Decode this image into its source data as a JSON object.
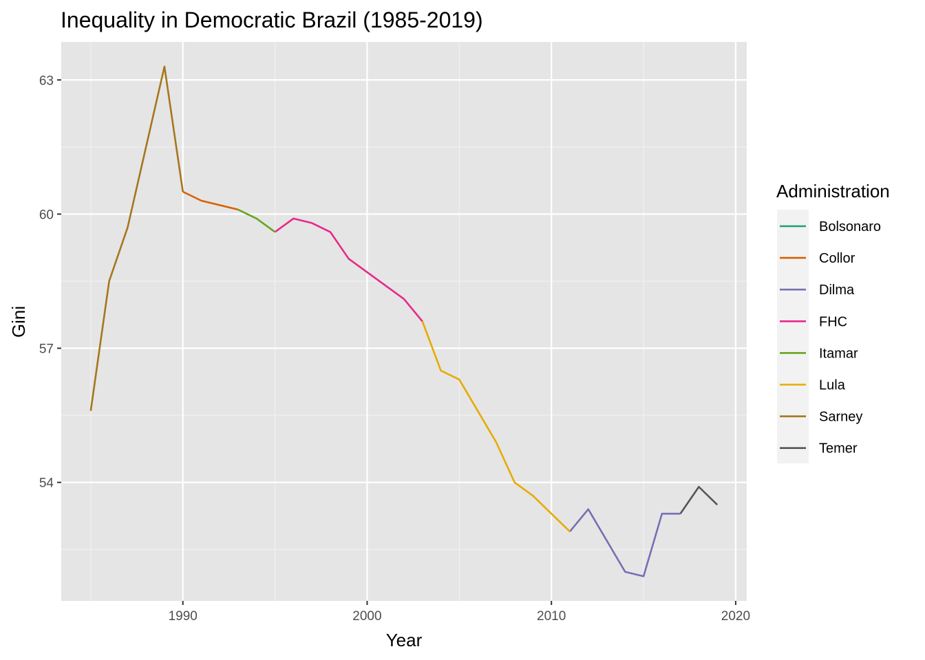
{
  "chart_data": {
    "type": "line",
    "title": "Inequality in Democratic Brazil (1985-2019)",
    "xlabel": "Year",
    "ylabel": "Gini",
    "xlim": [
      1983.4,
      2020.6
    ],
    "ylim": [
      51.35,
      63.85
    ],
    "x_ticks": [
      1990,
      2000,
      2010,
      2020
    ],
    "y_ticks": [
      54,
      57,
      60,
      63
    ],
    "grid": true,
    "legend": {
      "title": "Administration",
      "position": "right"
    },
    "series": [
      {
        "name": "Bolsonaro",
        "color": "#1b9e77",
        "x": [],
        "y": []
      },
      {
        "name": "Collor",
        "color": "#d95f02",
        "x": [
          1990,
          1991,
          1992,
          1993
        ],
        "y": [
          60.5,
          60.3,
          60.2,
          60.1
        ]
      },
      {
        "name": "Dilma",
        "color": "#7570b3",
        "x": [
          2011,
          2012,
          2013,
          2014,
          2015,
          2016,
          2017
        ],
        "y": [
          52.9,
          53.4,
          52.7,
          52.0,
          51.9,
          53.3,
          53.3
        ]
      },
      {
        "name": "FHC",
        "color": "#e7298a",
        "x": [
          1995,
          1996,
          1997,
          1998,
          1999,
          2000,
          2001,
          2002,
          2003
        ],
        "y": [
          59.6,
          59.9,
          59.8,
          59.6,
          59.0,
          58.7,
          58.4,
          58.1,
          57.6
        ]
      },
      {
        "name": "Itamar",
        "color": "#66a61e",
        "x": [
          1993,
          1994,
          1995
        ],
        "y": [
          60.1,
          59.9,
          59.6
        ]
      },
      {
        "name": "Lula",
        "color": "#e6ab02",
        "x": [
          2003,
          2004,
          2005,
          2006,
          2007,
          2008,
          2009,
          2010,
          2011
        ],
        "y": [
          57.6,
          56.5,
          56.3,
          55.6,
          54.9,
          54.0,
          53.7,
          53.3,
          52.9
        ]
      },
      {
        "name": "Sarney",
        "color": "#a6761d",
        "x": [
          1985,
          1986,
          1987,
          1988,
          1989,
          1990
        ],
        "y": [
          55.6,
          58.5,
          59.7,
          61.5,
          63.3,
          60.5
        ]
      },
      {
        "name": "Temer",
        "color": "#555555",
        "x": [
          2017,
          2018,
          2019
        ],
        "y": [
          53.3,
          53.9,
          53.5
        ]
      }
    ]
  }
}
